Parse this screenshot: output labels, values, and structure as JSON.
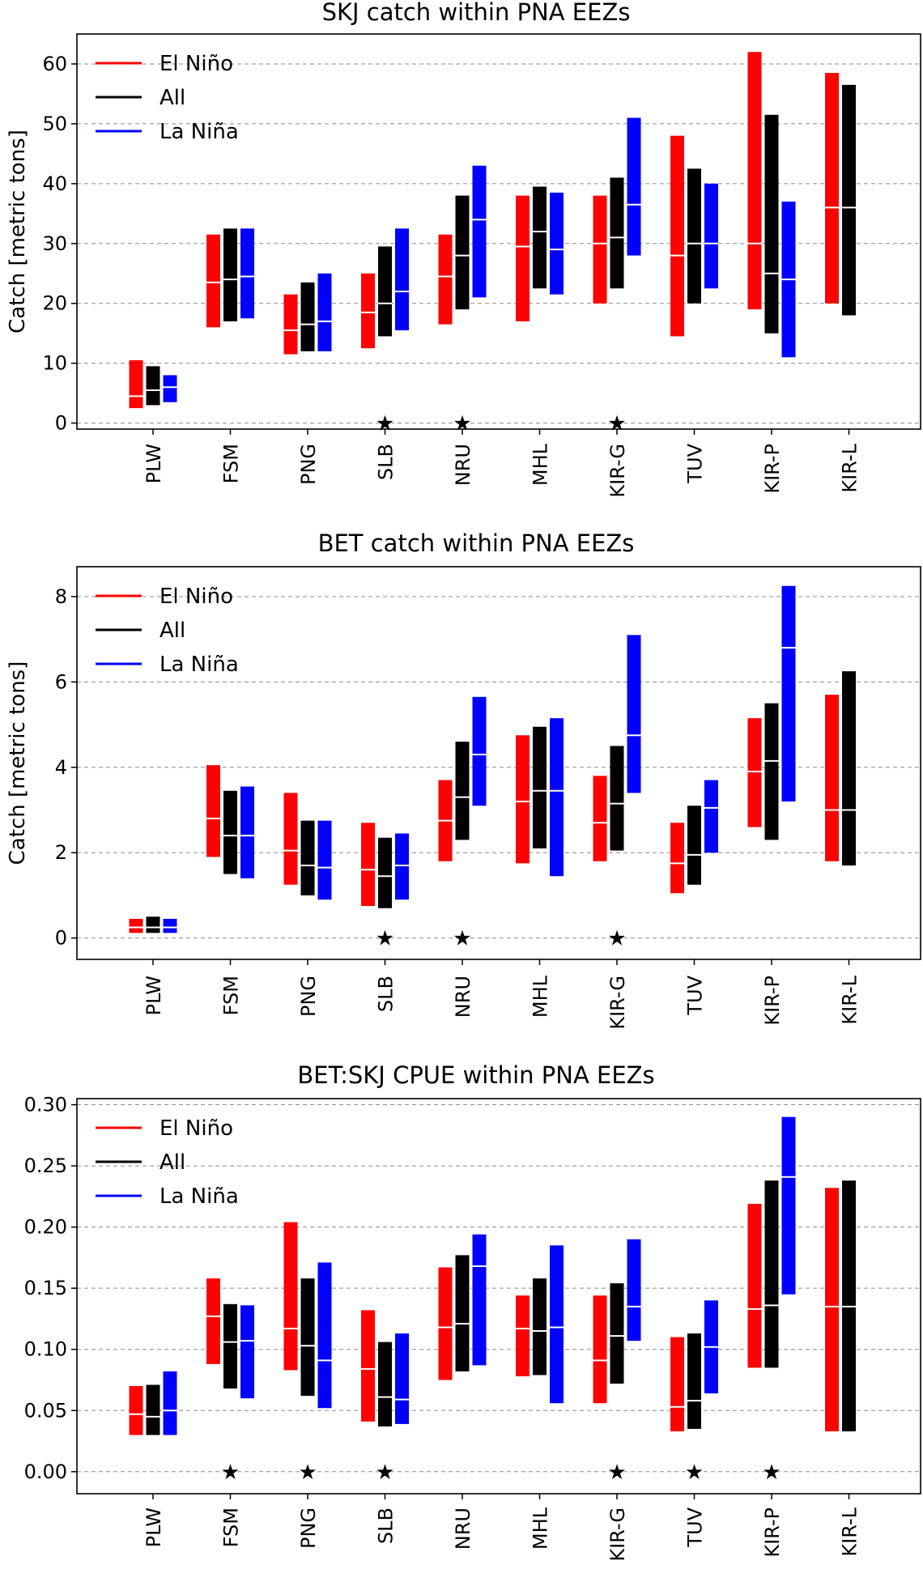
{
  "chart_data": [
    {
      "type": "range-bar",
      "title": "SKJ catch within PNA EEZs",
      "ylabel": "Catch [metric tons]",
      "ylim": [
        -1,
        65
      ],
      "yticks": [
        0,
        10,
        20,
        30,
        40,
        50,
        60
      ],
      "ytick_labels": [
        "0",
        "10",
        "20",
        "30",
        "40",
        "50",
        "60"
      ],
      "categories": [
        "PLW",
        "FSM",
        "PNG",
        "SLB",
        "NRU",
        "MHL",
        "KIR-G",
        "TUV",
        "KIR-P",
        "KIR-L"
      ],
      "legend": {
        "placement": "top-left",
        "entries": [
          "El Niño",
          "All",
          "La Niña"
        ]
      },
      "significant": [
        "SLB",
        "NRU",
        "KIR-G"
      ],
      "series": [
        {
          "name": "El Niño",
          "color": "#ff0000",
          "low": [
            2.5,
            16,
            11.5,
            12.5,
            16.5,
            17,
            20,
            14.5,
            19,
            20
          ],
          "median": [
            4.5,
            23.5,
            15.5,
            18.5,
            24.5,
            29.5,
            30,
            28,
            30,
            36
          ],
          "high": [
            10.5,
            31.5,
            21.5,
            25,
            31.5,
            38,
            38,
            48,
            62,
            58.5
          ]
        },
        {
          "name": "All",
          "color": "#000000",
          "low": [
            3,
            17,
            12,
            14.5,
            19,
            22.5,
            22.5,
            20,
            15,
            18
          ],
          "median": [
            5.5,
            24,
            16.5,
            20,
            28,
            32,
            31,
            30,
            25,
            36
          ],
          "high": [
            9.5,
            32.5,
            23.5,
            29.5,
            38,
            39.5,
            41,
            42.5,
            51.5,
            56.5
          ]
        },
        {
          "name": "La Niña",
          "color": "#0000ff",
          "low": [
            3.5,
            17.5,
            12,
            15.5,
            21,
            21.5,
            28,
            22.5,
            11,
            null
          ],
          "median": [
            6,
            24.5,
            17,
            22,
            34,
            29,
            36.5,
            30,
            24,
            null
          ],
          "high": [
            8,
            32.5,
            25,
            32.5,
            43,
            38.5,
            51,
            40,
            37,
            null
          ]
        }
      ]
    },
    {
      "type": "range-bar",
      "title": "BET catch within PNA EEZs",
      "ylabel": "Catch [metric tons]",
      "ylim": [
        -0.5,
        8.7
      ],
      "yticks": [
        0,
        2,
        4,
        6,
        8
      ],
      "ytick_labels": [
        "0",
        "2",
        "4",
        "6",
        "8"
      ],
      "categories": [
        "PLW",
        "FSM",
        "PNG",
        "SLB",
        "NRU",
        "MHL",
        "KIR-G",
        "TUV",
        "KIR-P",
        "KIR-L"
      ],
      "legend": {
        "placement": "top-left",
        "entries": [
          "El Niño",
          "All",
          "La Niña"
        ]
      },
      "significant": [
        "SLB",
        "NRU",
        "KIR-G"
      ],
      "series": [
        {
          "name": "El Niño",
          "color": "#ff0000",
          "low": [
            0.12,
            1.9,
            1.25,
            0.75,
            1.8,
            1.75,
            1.8,
            1.05,
            2.6,
            1.8
          ],
          "median": [
            0.25,
            2.8,
            2.05,
            1.6,
            2.75,
            3.2,
            2.7,
            1.75,
            3.9,
            3.0
          ],
          "high": [
            0.45,
            4.05,
            3.4,
            2.7,
            3.7,
            4.75,
            3.8,
            2.7,
            5.15,
            5.7
          ]
        },
        {
          "name": "All",
          "color": "#000000",
          "low": [
            0.12,
            1.5,
            1.0,
            0.7,
            2.3,
            2.1,
            2.05,
            1.25,
            2.3,
            1.7
          ],
          "median": [
            0.25,
            2.4,
            1.7,
            1.45,
            3.3,
            3.45,
            3.15,
            1.95,
            4.15,
            3.0
          ],
          "high": [
            0.5,
            3.45,
            2.75,
            2.35,
            4.6,
            4.95,
            4.5,
            3.1,
            5.5,
            6.25
          ]
        },
        {
          "name": "La Niña",
          "color": "#0000ff",
          "low": [
            0.12,
            1.4,
            0.9,
            0.9,
            3.1,
            1.45,
            3.4,
            2.0,
            3.2,
            null
          ],
          "median": [
            0.25,
            2.4,
            1.65,
            1.7,
            4.3,
            3.45,
            4.75,
            3.05,
            6.8,
            null
          ],
          "high": [
            0.45,
            3.55,
            2.75,
            2.45,
            5.65,
            5.15,
            7.1,
            3.7,
            8.25,
            null
          ]
        }
      ]
    },
    {
      "type": "range-bar",
      "title": "BET:SKJ CPUE within PNA EEZs",
      "ylabel": "",
      "ylim": [
        -0.018,
        0.305
      ],
      "yticks": [
        0,
        0.05,
        0.1,
        0.15,
        0.2,
        0.25,
        0.3
      ],
      "ytick_labels": [
        "0.00",
        "0.05",
        "0.10",
        "0.15",
        "0.20",
        "0.25",
        "0.30"
      ],
      "categories": [
        "PLW",
        "FSM",
        "PNG",
        "SLB",
        "NRU",
        "MHL",
        "KIR-G",
        "TUV",
        "KIR-P",
        "KIR-L"
      ],
      "legend": {
        "placement": "top-left",
        "entries": [
          "El Niño",
          "All",
          "La Niña"
        ]
      },
      "significant": [
        "FSM",
        "PNG",
        "SLB",
        "KIR-G",
        "TUV",
        "KIR-P"
      ],
      "series": [
        {
          "name": "El Niño",
          "color": "#ff0000",
          "low": [
            0.03,
            0.088,
            0.083,
            0.041,
            0.075,
            0.078,
            0.056,
            0.033,
            0.085,
            0.033
          ],
          "median": [
            0.047,
            0.127,
            0.117,
            0.084,
            0.118,
            0.117,
            0.091,
            0.053,
            0.133,
            0.135
          ],
          "high": [
            0.07,
            0.158,
            0.204,
            0.132,
            0.167,
            0.144,
            0.144,
            0.11,
            0.219,
            0.232
          ]
        },
        {
          "name": "All",
          "color": "#000000",
          "low": [
            0.03,
            0.068,
            0.062,
            0.037,
            0.082,
            0.079,
            0.072,
            0.035,
            0.085,
            0.033
          ],
          "median": [
            0.045,
            0.106,
            0.103,
            0.061,
            0.121,
            0.115,
            0.111,
            0.058,
            0.136,
            0.135
          ],
          "high": [
            0.071,
            0.137,
            0.158,
            0.106,
            0.177,
            0.158,
            0.154,
            0.113,
            0.238,
            0.238
          ]
        },
        {
          "name": "La Niña",
          "color": "#0000ff",
          "low": [
            0.03,
            0.06,
            0.052,
            0.039,
            0.087,
            0.056,
            0.107,
            0.064,
            0.145,
            null
          ],
          "median": [
            0.05,
            0.107,
            0.091,
            0.059,
            0.168,
            0.118,
            0.135,
            0.102,
            0.241,
            null
          ],
          "high": [
            0.082,
            0.136,
            0.171,
            0.113,
            0.194,
            0.185,
            0.19,
            0.14,
            0.29,
            null
          ]
        }
      ]
    }
  ]
}
